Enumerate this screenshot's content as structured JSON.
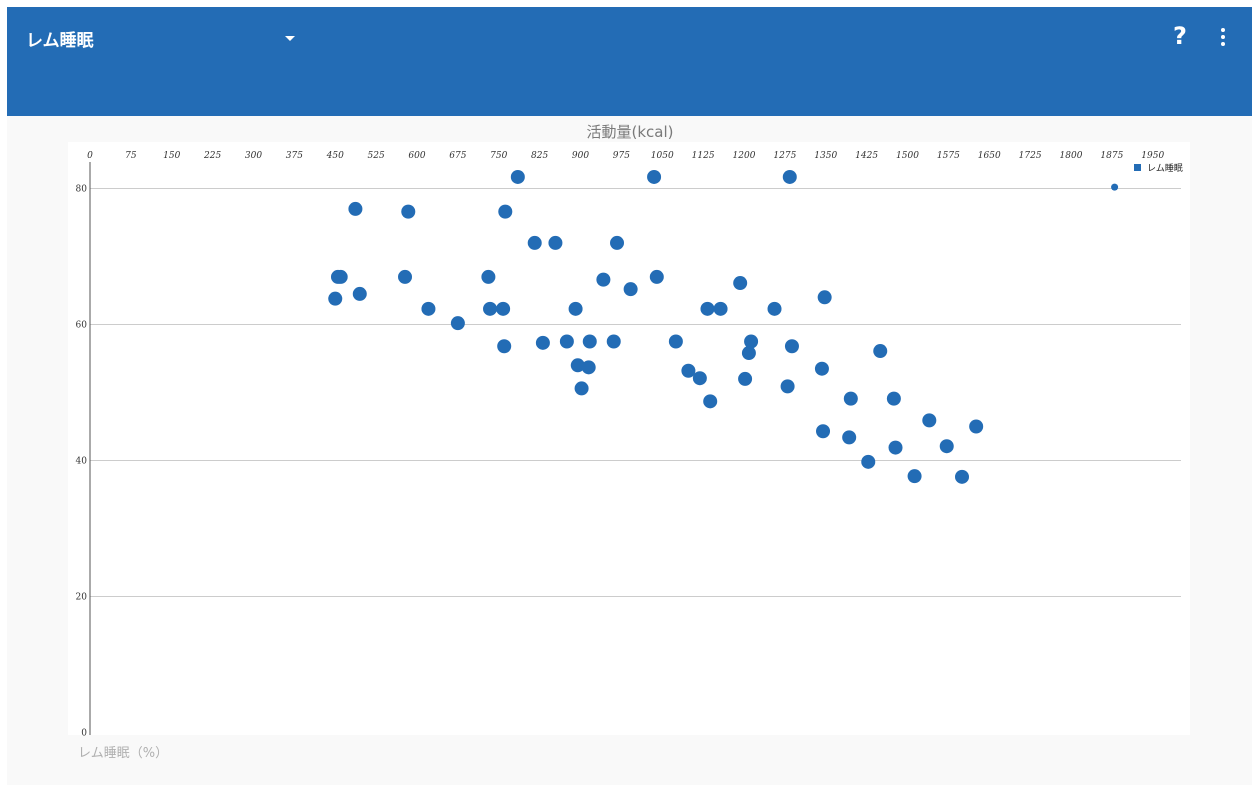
{
  "header": {
    "title": "レム睡眠",
    "help_glyph": "?",
    "menu_icon": "more-vert-icon",
    "background_color": "#236cb5"
  },
  "chart_data": {
    "type": "scatter",
    "xlabel": "活動量(kcal)",
    "ylabel": "レム睡眠（%）",
    "x_ticks": [
      0,
      75,
      150,
      225,
      300,
      375,
      450,
      525,
      600,
      675,
      750,
      825,
      900,
      975,
      1050,
      1125,
      1200,
      1275,
      1350,
      1425,
      1500,
      1575,
      1650,
      1725,
      1800,
      1875,
      1950
    ],
    "y_ticks": [
      0,
      20,
      40,
      60,
      80
    ],
    "xlim": [
      0,
      2000
    ],
    "ylim": [
      0,
      88
    ],
    "grid": true,
    "x_axis_position": "top",
    "legend_position": "top-right",
    "color": "#236cb5",
    "series": [
      {
        "name": "レム睡眠",
        "points": [
          [
            450,
            63.8
          ],
          [
            455,
            67
          ],
          [
            460,
            67
          ],
          [
            487,
            77
          ],
          [
            495,
            64.5
          ],
          [
            578,
            67
          ],
          [
            584,
            76.6
          ],
          [
            621,
            62.3
          ],
          [
            675,
            60.2
          ],
          [
            731,
            67
          ],
          [
            734,
            62.3
          ],
          [
            758,
            62.3
          ],
          [
            760,
            56.8
          ],
          [
            762,
            76.6
          ],
          [
            785,
            81.7
          ],
          [
            816,
            72
          ],
          [
            831,
            57.3
          ],
          [
            854,
            72
          ],
          [
            875,
            57.5
          ],
          [
            891,
            62.3
          ],
          [
            895,
            54
          ],
          [
            902,
            50.6
          ],
          [
            915,
            53.7
          ],
          [
            917,
            57.5
          ],
          [
            942,
            66.6
          ],
          [
            961,
            57.5
          ],
          [
            967,
            72
          ],
          [
            992,
            65.2
          ],
          [
            1035,
            81.7
          ],
          [
            1040,
            67
          ],
          [
            1075,
            57.5
          ],
          [
            1098,
            53.2
          ],
          [
            1119,
            52.1
          ],
          [
            1133,
            62.3
          ],
          [
            1138,
            48.7
          ],
          [
            1157,
            62.3
          ],
          [
            1193,
            66.1
          ],
          [
            1202,
            52
          ],
          [
            1209,
            55.8
          ],
          [
            1213,
            57.5
          ],
          [
            1256,
            62.3
          ],
          [
            1280,
            50.9
          ],
          [
            1284,
            81.7
          ],
          [
            1288,
            56.8
          ],
          [
            1343,
            53.5
          ],
          [
            1345,
            44.3
          ],
          [
            1348,
            64
          ],
          [
            1393,
            43.4
          ],
          [
            1396,
            49.1
          ],
          [
            1428,
            39.8
          ],
          [
            1450,
            56.1
          ],
          [
            1475,
            49.1
          ],
          [
            1478,
            41.9
          ],
          [
            1513,
            37.7
          ],
          [
            1540,
            45.9
          ],
          [
            1572,
            42.1
          ],
          [
            1600,
            37.6
          ],
          [
            1626,
            45
          ]
        ]
      },
      {
        "name": "",
        "points": [
          [
            1880,
            80.2
          ]
        ]
      }
    ]
  }
}
